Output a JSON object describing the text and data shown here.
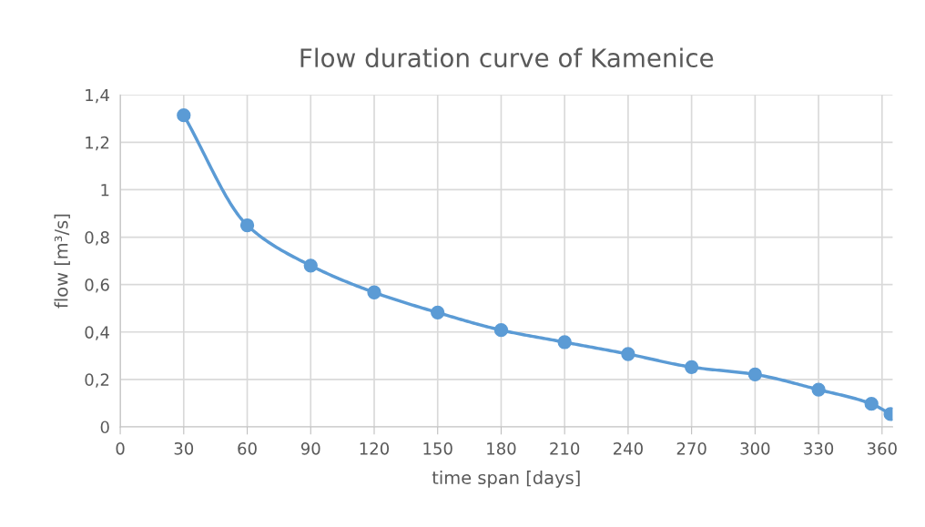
{
  "chart_data": {
    "type": "line",
    "title": "Flow duration curve of Kamenice",
    "xlabel": "time span [days]",
    "ylabel": "flow [m³/s]",
    "x": [
      30,
      60,
      90,
      120,
      150,
      180,
      210,
      240,
      270,
      300,
      330,
      355,
      364
    ],
    "series": [
      {
        "color": "#5b9bd5",
        "values": [
          1.314,
          0.85,
          0.68,
          0.567,
          0.482,
          0.408,
          0.357,
          0.307,
          0.252,
          0.221,
          0.157,
          0.097,
          0.054
        ]
      }
    ],
    "xlim": [
      0,
      365
    ],
    "xticks": [
      0,
      30,
      60,
      90,
      120,
      150,
      180,
      210,
      240,
      270,
      300,
      330,
      360
    ],
    "ylim": [
      0,
      1.4
    ],
    "yticks": [
      0,
      {
        "value": 0.2,
        "label": "0,2"
      },
      {
        "value": 0.4,
        "label": "0,4"
      },
      {
        "value": 0.6,
        "label": "0,6"
      },
      {
        "value": 0.8,
        "label": "0,8"
      },
      1,
      {
        "value": 1.2,
        "label": "1,2"
      },
      {
        "value": 1.4,
        "label": "1,4"
      }
    ],
    "grid": true,
    "marker": "circle",
    "line_style": "solid"
  }
}
